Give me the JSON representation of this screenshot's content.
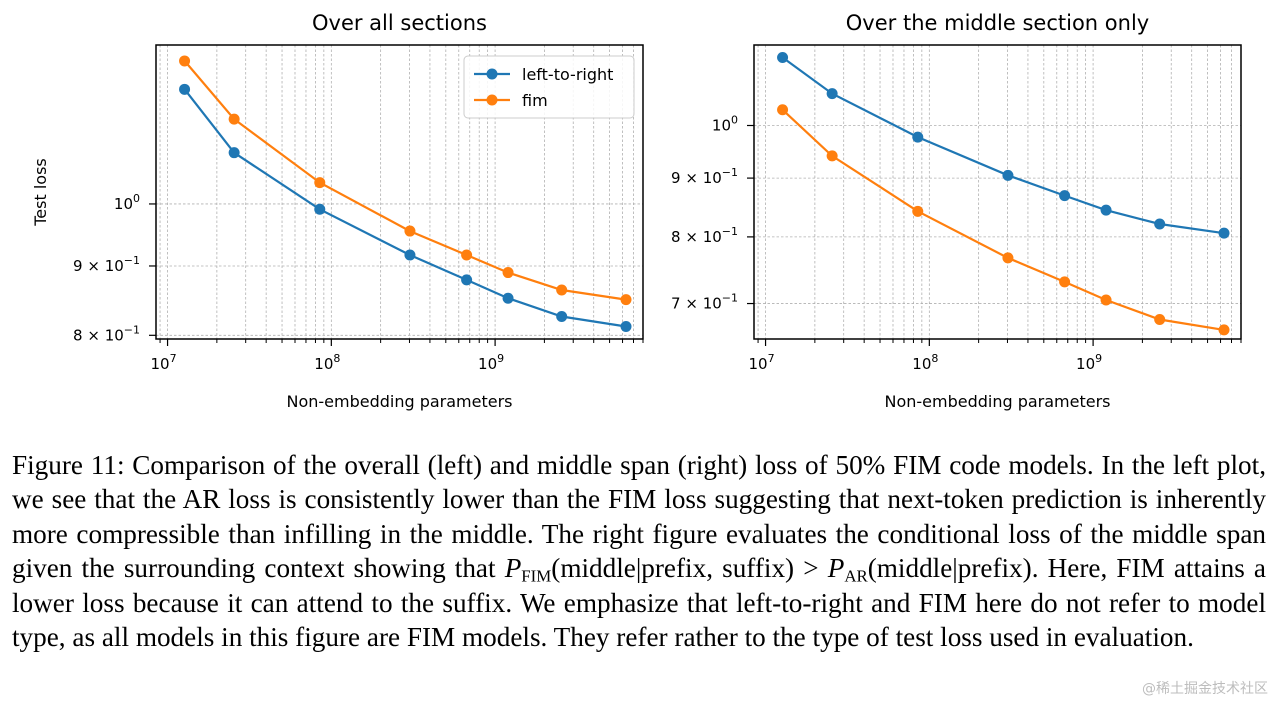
{
  "chart_data": [
    {
      "type": "line",
      "title": "Over all sections",
      "xlabel": "Non-embedding parameters",
      "ylabel": "Test loss",
      "xscale": "log",
      "yscale": "log",
      "xlim": [
        8500000.0,
        8000000000.0
      ],
      "ylim": [
        0.795,
        1.31
      ],
      "xticks": [
        {
          "value": 10000000.0,
          "base": "10",
          "exp": "7"
        },
        {
          "value": 100000000.0,
          "base": "10",
          "exp": "8"
        },
        {
          "value": 1000000000.0,
          "base": "10",
          "exp": "9"
        }
      ],
      "yticks": [
        {
          "value": 0.8,
          "mant": "8",
          "base": "10",
          "exp": "−1"
        },
        {
          "value": 0.9,
          "mant": "9",
          "base": "10",
          "exp": "−1"
        },
        {
          "value": 1.0,
          "mant": "",
          "base": "10",
          "exp": "0"
        }
      ],
      "grid": true,
      "legend_position": "top-right",
      "x": [
        12700000.0,
        25500000.0,
        85000000.0,
        302000000.0,
        670000000.0,
        1200000000.0,
        2550000000.0,
        6300000000.0
      ],
      "series": [
        {
          "name": "left-to-right",
          "color": "#1f77b4",
          "values": [
            1.215,
            1.091,
            0.991,
            0.917,
            0.879,
            0.852,
            0.826,
            0.812
          ]
        },
        {
          "name": "fim",
          "color": "#ff7f0e",
          "values": [
            1.275,
            1.155,
            1.037,
            0.955,
            0.917,
            0.89,
            0.864,
            0.85
          ]
        }
      ]
    },
    {
      "type": "line",
      "title": "Over the middle section only",
      "xlabel": "Non-embedding parameters",
      "ylabel": "",
      "xscale": "log",
      "yscale": "log",
      "xlim": [
        8500000.0,
        8000000000.0
      ],
      "ylim": [
        0.652,
        1.175
      ],
      "xticks": [
        {
          "value": 10000000.0,
          "base": "10",
          "exp": "7"
        },
        {
          "value": 100000000.0,
          "base": "10",
          "exp": "8"
        },
        {
          "value": 1000000000.0,
          "base": "10",
          "exp": "9"
        }
      ],
      "yticks": [
        {
          "value": 0.7,
          "mant": "7",
          "base": "10",
          "exp": "−1"
        },
        {
          "value": 0.8,
          "mant": "8",
          "base": "10",
          "exp": "−1"
        },
        {
          "value": 0.9,
          "mant": "9",
          "base": "10",
          "exp": "−1"
        },
        {
          "value": 1.0,
          "mant": "",
          "base": "10",
          "exp": "0"
        }
      ],
      "grid": true,
      "legend_position": "none",
      "x": [
        12700000.0,
        25500000.0,
        85000000.0,
        302000000.0,
        670000000.0,
        1200000000.0,
        2550000000.0,
        6300000000.0
      ],
      "series": [
        {
          "name": "left-to-right",
          "color": "#1f77b4",
          "values": [
            1.146,
            1.066,
            0.977,
            0.905,
            0.869,
            0.844,
            0.821,
            0.806
          ]
        },
        {
          "name": "fim",
          "color": "#ff7f0e",
          "values": [
            1.032,
            0.941,
            0.842,
            0.767,
            0.731,
            0.705,
            0.678,
            0.664
          ]
        }
      ]
    }
  ],
  "caption": {
    "part1": "Figure 11: Comparison of the overall (left) and middle span (right) loss of 50% FIM code models. In the left plot, we see that the AR loss is consistently lower than the FIM loss suggesting that next-token prediction is inherently more compressible than infilling in the middle. The right figure evaluates the conditional loss of the middle span given the surrounding context showing that",
    "p_fim": "P",
    "p_fim_sub": "FIM",
    "fim_args": "(middle|prefix, suffix)",
    "gt": " > ",
    "p_ar": "P",
    "p_ar_sub": "AR",
    "ar_args": "(middle|prefix).",
    "part2": " Here, FIM attains a lower loss because it can attend to the suffix. We emphasize that left-to-right and FIM here do not refer to model type, as all models in this figure are FIM models. They refer rather to the type of test loss used in evaluation."
  },
  "watermark": "@稀土掘金技术社区"
}
